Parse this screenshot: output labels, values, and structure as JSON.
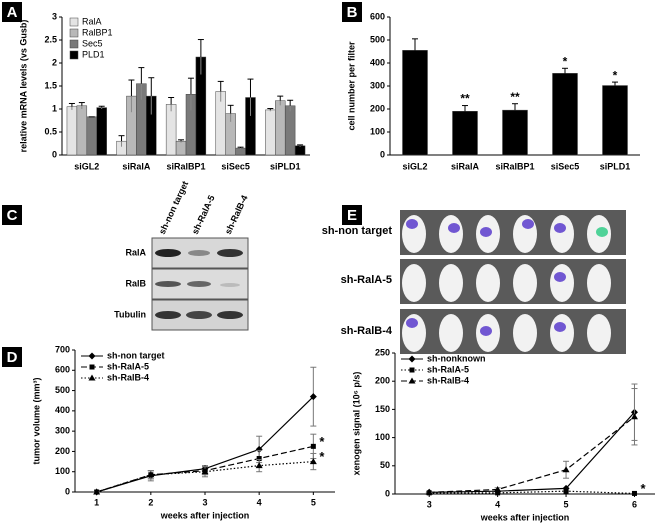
{
  "panels": [
    "A",
    "B",
    "C",
    "D",
    "E"
  ],
  "blot": {
    "lanes": [
      "sh-non target",
      "sh-RalA-5",
      "sh-RalB-4"
    ],
    "rows": [
      "RalA",
      "RalB",
      "Tubulin"
    ]
  },
  "imaging": {
    "rows": [
      "sh-non target",
      "sh-RalA-5",
      "sh-RalB-4"
    ]
  },
  "chart_data": [
    {
      "type": "bar",
      "y_label": "relative mRNA levels (vs Gusb)",
      "categories": [
        "siGL2",
        "siRalA",
        "siRalBP1",
        "siSec5",
        "siPLD1"
      ],
      "series": [
        {
          "name": "RalA",
          "color": "#e4e4e4",
          "values": [
            1.05,
            0.3,
            1.1,
            1.38,
            0.98
          ],
          "errors": [
            0.07,
            0.12,
            0.15,
            0.22,
            0.03
          ]
        },
        {
          "name": "RalBP1",
          "color": "#b8b8b8",
          "values": [
            1.07,
            1.28,
            0.3,
            0.9,
            1.18
          ],
          "errors": [
            0.07,
            0.35,
            0.03,
            0.18,
            0.1
          ]
        },
        {
          "name": "Sec5",
          "color": "#7a7a7a",
          "values": [
            0.83,
            1.55,
            1.32,
            0.15,
            1.07
          ],
          "errors": [
            0,
            0.35,
            0.35,
            0.02,
            0.12
          ]
        },
        {
          "name": "PLD1",
          "color": "#000000",
          "values": [
            1.03,
            1.28,
            2.13,
            1.25,
            0.2
          ],
          "errors": [
            0.03,
            0.4,
            0.38,
            0.4,
            0.02
          ]
        }
      ],
      "ylim": [
        0,
        3
      ],
      "yticks": [
        0,
        0.5,
        1,
        1.5,
        2,
        2.5,
        3
      ],
      "grid": false,
      "legend": "top-left"
    },
    {
      "type": "bar",
      "y_label": "cell number per filter",
      "categories": [
        "siGL2",
        "siRalA",
        "siRalBP1",
        "siSec5",
        "siPLD1"
      ],
      "values": [
        455,
        190,
        195,
        355,
        302
      ],
      "errors": [
        50,
        25,
        28,
        22,
        15
      ],
      "color": "#000000",
      "annotations": [
        {
          "category": "siRalA",
          "text": "**"
        },
        {
          "category": "siRalBP1",
          "text": "**"
        },
        {
          "category": "siSec5",
          "text": "*"
        },
        {
          "category": "siPLD1",
          "text": "*"
        }
      ],
      "ylim": [
        0,
        600
      ],
      "yticks": [
        0,
        100,
        200,
        300,
        400,
        500,
        600
      ],
      "grid": false
    },
    {
      "type": "line",
      "x_label": "weeks after injection",
      "y_label": "tumor volume (mm³)",
      "x": [
        1,
        2,
        3,
        4,
        5
      ],
      "series": [
        {
          "name": "sh-non target",
          "color": "#000000",
          "line_style": "solid",
          "marker": "diamond",
          "values": [
            0,
            80,
            115,
            210,
            470
          ],
          "errors": [
            0,
            25,
            15,
            65,
            145
          ]
        },
        {
          "name": "sh-RalA-5",
          "color": "#000000",
          "line_style": "dashed",
          "marker": "square",
          "values": [
            0,
            85,
            105,
            165,
            225
          ],
          "errors": [
            0,
            20,
            20,
            40,
            60
          ]
        },
        {
          "name": "sh-RalB-4",
          "color": "#000000",
          "line_style": "dotted",
          "marker": "triangle",
          "values": [
            0,
            85,
            100,
            130,
            150
          ],
          "errors": [
            0,
            20,
            25,
            30,
            40
          ]
        }
      ],
      "annotations": [
        {
          "series": "sh-RalA-5",
          "text": "*"
        },
        {
          "series": "sh-RalB-4",
          "text": "*"
        }
      ],
      "xlim": [
        0.6,
        5.4
      ],
      "xticks": [
        1,
        2,
        3,
        4,
        5
      ],
      "ylim": [
        0,
        700
      ],
      "yticks": [
        0,
        100,
        200,
        300,
        400,
        500,
        600,
        700
      ],
      "grid": false,
      "legend": "top-left"
    },
    {
      "type": "line",
      "x_label": "weeks after injection",
      "y_label": "xenogen signal (10⁶ p/s)",
      "x": [
        3,
        4,
        5,
        6
      ],
      "series": [
        {
          "name": "sh-nonknown",
          "color": "#000000",
          "line_style": "solid",
          "marker": "diamond",
          "values": [
            3,
            5,
            10,
            145
          ],
          "errors": [
            0,
            0,
            0,
            50
          ]
        },
        {
          "name": "sh-RalA-5",
          "color": "#000000",
          "line_style": "dotted",
          "marker": "square",
          "values": [
            2,
            2,
            5,
            1
          ],
          "errors": [
            0,
            0,
            0,
            0
          ]
        },
        {
          "name": "sh-RalB-4",
          "color": "#000000",
          "line_style": "dashed",
          "marker": "triangle",
          "values": [
            3,
            8,
            43,
            137
          ],
          "errors": [
            0,
            3,
            15,
            50
          ]
        }
      ],
      "annotations": [
        {
          "series": "sh-RalA-5",
          "text": "*"
        }
      ],
      "xlim": [
        2.5,
        6.3
      ],
      "xticks": [
        3,
        4,
        5,
        6
      ],
      "ylim": [
        0,
        250
      ],
      "yticks": [
        0,
        50,
        100,
        150,
        200,
        250
      ],
      "grid": false,
      "legend": "top-left"
    }
  ]
}
